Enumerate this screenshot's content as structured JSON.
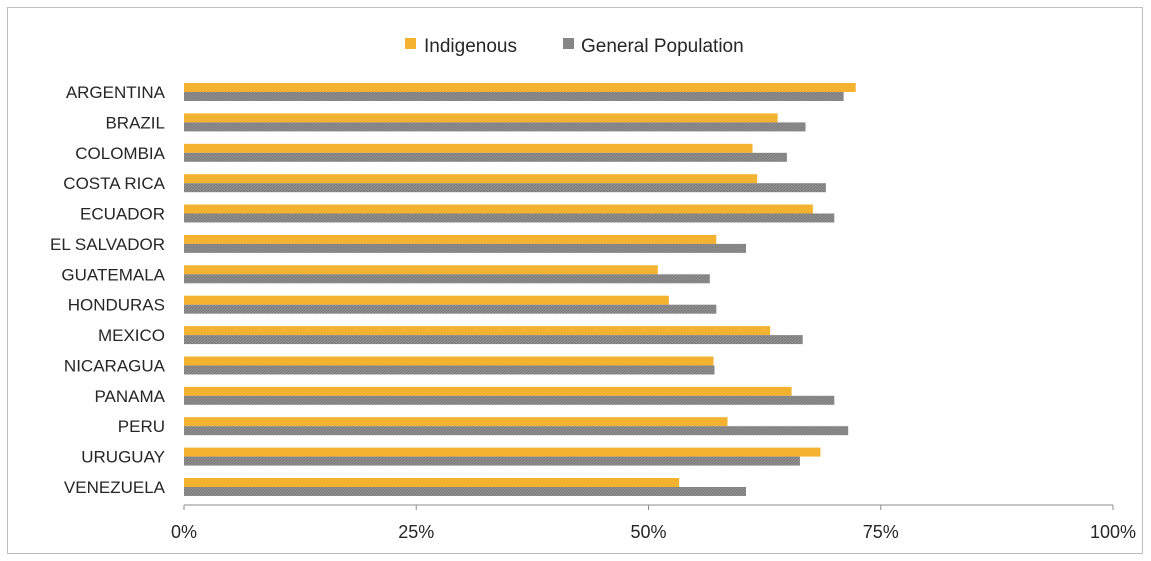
{
  "chart_data": {
    "type": "bar",
    "orientation": "horizontal",
    "title": "",
    "xlabel": "",
    "ylabel": "",
    "categories": [
      "ARGENTINA",
      "BRAZIL",
      "COLOMBIA",
      "COSTA RICA",
      "ECUADOR",
      "EL SALVADOR",
      "GUATEMALA",
      "HONDURAS",
      "MEXICO",
      "NICARAGUA",
      "PANAMA",
      "PERU",
      "URUGUAY",
      "VENEZUELA"
    ],
    "series": [
      {
        "name": "Indigenous",
        "color": "#f4b231",
        "values": [
          72.3,
          63.9,
          61.2,
          61.7,
          67.7,
          57.3,
          51.0,
          52.2,
          63.1,
          57.0,
          65.4,
          58.5,
          68.5,
          53.3
        ]
      },
      {
        "name": "General Population",
        "color": "#8c8c8c",
        "values": [
          71.0,
          66.9,
          64.9,
          69.1,
          70.0,
          60.5,
          56.6,
          57.3,
          66.6,
          57.1,
          70.0,
          71.5,
          66.3,
          60.5
        ]
      }
    ],
    "xlim": [
      0,
      100
    ],
    "ticks": [
      "0%",
      "25%",
      "50%",
      "75%",
      "100%"
    ],
    "tick_values": [
      0,
      25,
      50,
      75,
      100
    ],
    "grid": false,
    "legend_position": "top"
  }
}
